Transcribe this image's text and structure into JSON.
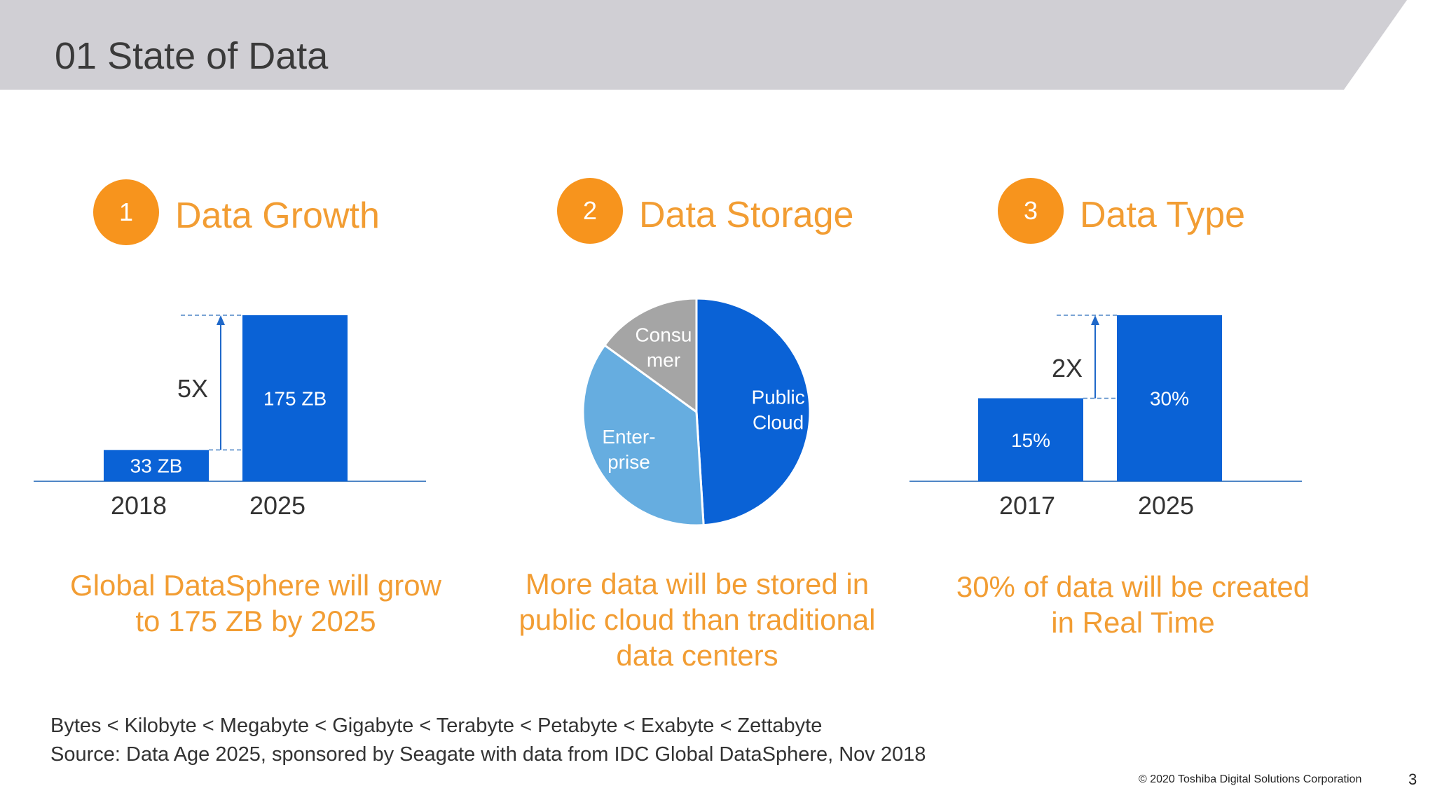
{
  "slide": {
    "title": "01 State of Data",
    "page_number": "3",
    "copyright": "© 2020 Toshiba Digital Solutions Corporation"
  },
  "sections": [
    {
      "number": "1",
      "title": "Data Growth",
      "caption_lines": [
        "Global DataSphere will grow",
        "to 175 ZB by 2025"
      ]
    },
    {
      "number": "2",
      "title": "Data Storage",
      "caption_lines": [
        "More data will be stored in",
        "public cloud than traditional",
        "data centers"
      ]
    },
    {
      "number": "3",
      "title": "Data Type",
      "caption_lines": [
        "30% of data will be created",
        "in Real Time"
      ]
    }
  ],
  "footnotes": [
    "Bytes < Kilobyte < Megabyte < Gigabyte < Terabyte < Petabyte < Exabyte < Zettabyte",
    "Source: Data Age 2025, sponsored by Seagate with data from IDC Global DataSphere, Nov 2018"
  ],
  "colors": {
    "header_bg": "#d0cfd4",
    "accent_orange": "#f7941d",
    "caption_orange": "#f29d33",
    "bar_blue": "#0a62d6",
    "pie_public_cloud": "#0a62d6",
    "pie_enterprise": "#66ade0",
    "pie_consumer": "#a5a5a5",
    "axis_line": "#4f86c6",
    "arrow_blue": "#1f68c9"
  },
  "chart_data": [
    {
      "type": "bar",
      "categories": [
        "2018",
        "2025"
      ],
      "values": [
        33,
        175
      ],
      "data_labels": [
        "33 ZB",
        "175 ZB"
      ],
      "annotation": "5X"
    },
    {
      "type": "pie",
      "slices": [
        {
          "label": "Public Cloud",
          "label_lines": [
            "Public",
            "Cloud"
          ],
          "value": 49
        },
        {
          "label": "Enter-prise",
          "label_lines": [
            "Enter-",
            "prise"
          ],
          "value": 36
        },
        {
          "label": "Consumer",
          "label_lines": [
            "Consu",
            "mer"
          ],
          "value": 15
        }
      ]
    },
    {
      "type": "bar",
      "categories": [
        "2017",
        "2025"
      ],
      "values": [
        15,
        30
      ],
      "data_labels": [
        "15%",
        "30%"
      ],
      "annotation": "2X"
    }
  ]
}
